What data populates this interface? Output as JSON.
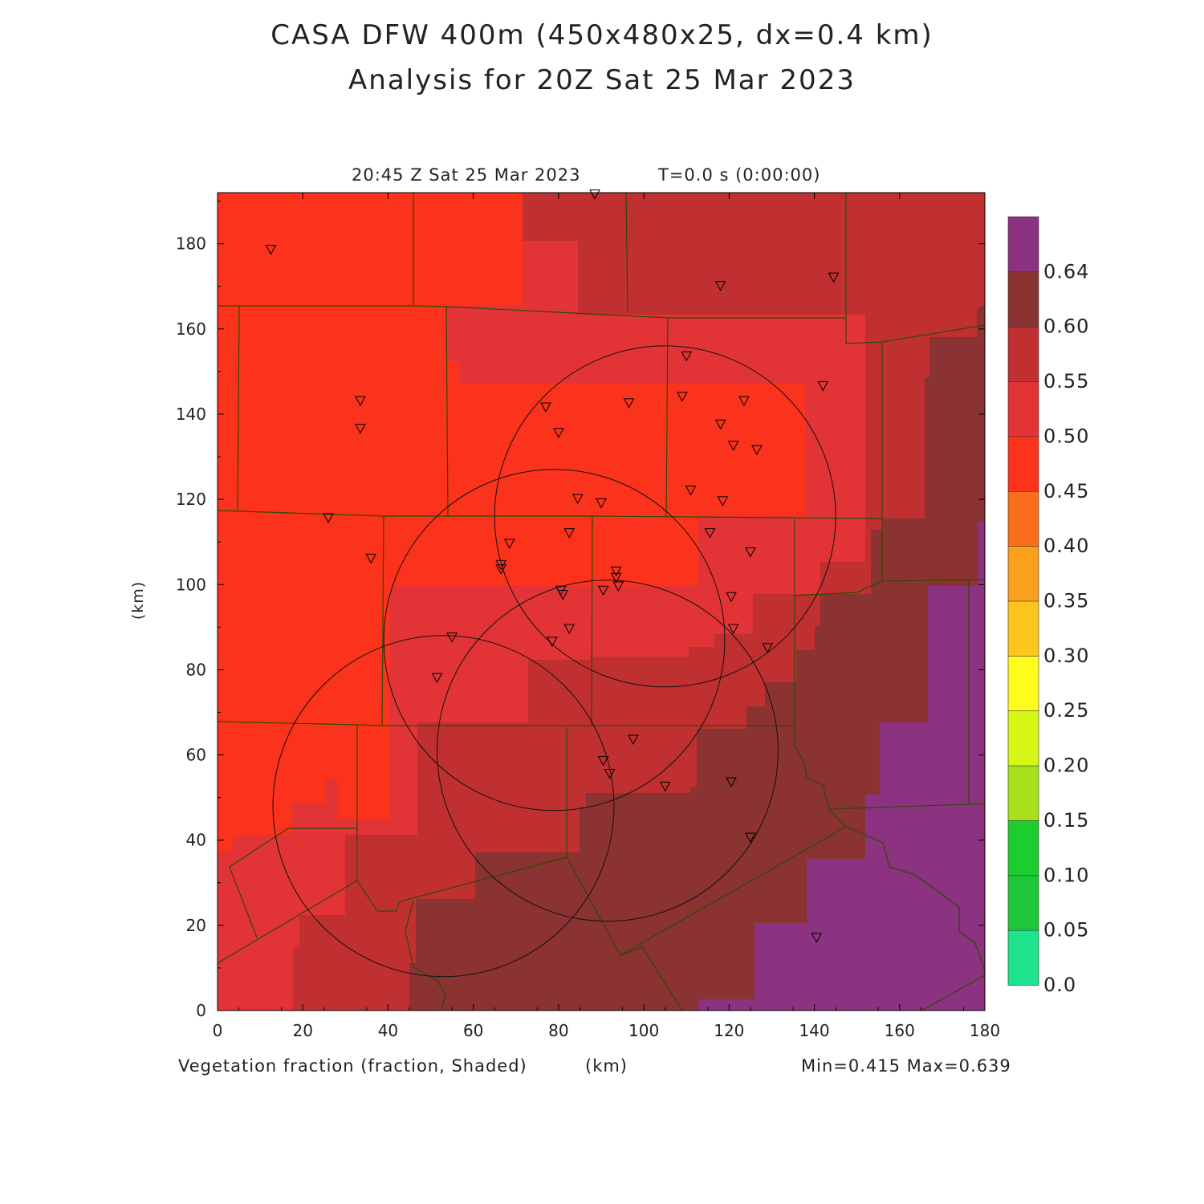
{
  "header": {
    "title_line1": "CASA DFW 400m (450x480x25, dx=0.4 km)",
    "title_line2": "Analysis for 20Z Sat 25 Mar 2023",
    "valid_time": "20:45 Z Sat 25 Mar 2023",
    "elapsed": "T=0.0 s (0:00:00)"
  },
  "footer": {
    "field_label": "Vegetation fraction (fraction, Shaded)",
    "x_unit": "(km)",
    "minmax": "Min=0.415 Max=0.639"
  },
  "axes": {
    "y_unit": "(km)",
    "x_ticks": [
      "0",
      "20",
      "40",
      "60",
      "80",
      "100",
      "120",
      "140",
      "160",
      "180"
    ],
    "y_ticks": [
      "0",
      "20",
      "40",
      "60",
      "80",
      "100",
      "120",
      "140",
      "160",
      "180"
    ],
    "x_range_km": [
      0,
      180
    ],
    "y_range_km": [
      0,
      192
    ]
  },
  "colorbar": {
    "labels": [
      "0.0",
      "0.05",
      "0.10",
      "0.15",
      "0.20",
      "0.25",
      "0.30",
      "0.35",
      "0.40",
      "0.45",
      "0.50",
      "0.55",
      "0.60",
      "0.64"
    ],
    "colors": [
      "#1de48c",
      "#1fc63a",
      "#1dcc2e",
      "#a6e01c",
      "#d6f616",
      "#fefe1c",
      "#fcc61c",
      "#fba01c",
      "#fa6e1c",
      "#fb321c",
      "#e23436",
      "#c03030",
      "#8b3232",
      "#8b3280"
    ]
  },
  "map_colors": {
    "c040": "#fb321c",
    "c045": "#e23436",
    "c050": "#c03030",
    "c055": "#8b3232",
    "c060": "#8b3280",
    "county_line": "#2e4a00"
  },
  "radar_rings": [
    {
      "center_km": [
        105,
        116
      ],
      "radius_km": 40
    },
    {
      "center_km": [
        79,
        87
      ],
      "radius_km": 40
    },
    {
      "center_km": [
        91.5,
        61
      ],
      "radius_km": 40
    },
    {
      "center_km": [
        53,
        48
      ],
      "radius_km": 40
    }
  ],
  "stations_km": [
    [
      88.5,
      191.5
    ],
    [
      12.5,
      178.5
    ],
    [
      118,
      170
    ],
    [
      144.5,
      172
    ],
    [
      110,
      153.5
    ],
    [
      109,
      144
    ],
    [
      123.5,
      143
    ],
    [
      96.5,
      142.5
    ],
    [
      77,
      141.5
    ],
    [
      33.5,
      143
    ],
    [
      142,
      146.5
    ],
    [
      118,
      137.5
    ],
    [
      80,
      135.5
    ],
    [
      33.5,
      136.5
    ],
    [
      121,
      132.5
    ],
    [
      126.5,
      131.5
    ],
    [
      111,
      122
    ],
    [
      84.5,
      120
    ],
    [
      90,
      119
    ],
    [
      118.5,
      119.5
    ],
    [
      26,
      115.5
    ],
    [
      82.5,
      112
    ],
    [
      115.5,
      112
    ],
    [
      68.5,
      109.5
    ],
    [
      66.5,
      104.5
    ],
    [
      66.5,
      103.5
    ],
    [
      36,
      106
    ],
    [
      125,
      107.5
    ],
    [
      93.5,
      103
    ],
    [
      93.5,
      101.5
    ],
    [
      94,
      99.5
    ],
    [
      90.5,
      98.5
    ],
    [
      80.5,
      98.5
    ],
    [
      81,
      97.5
    ],
    [
      120.5,
      97
    ],
    [
      82.5,
      89.5
    ],
    [
      121,
      89.5
    ],
    [
      129,
      85
    ],
    [
      55,
      87.5
    ],
    [
      78.5,
      86.5
    ],
    [
      51.5,
      78
    ],
    [
      97.5,
      63.5
    ],
    [
      90.5,
      58.5
    ],
    [
      92,
      55.5
    ],
    [
      120.5,
      53.5
    ],
    [
      105,
      52.5
    ],
    [
      125,
      40.5
    ],
    [
      140.5,
      17
    ]
  ]
}
